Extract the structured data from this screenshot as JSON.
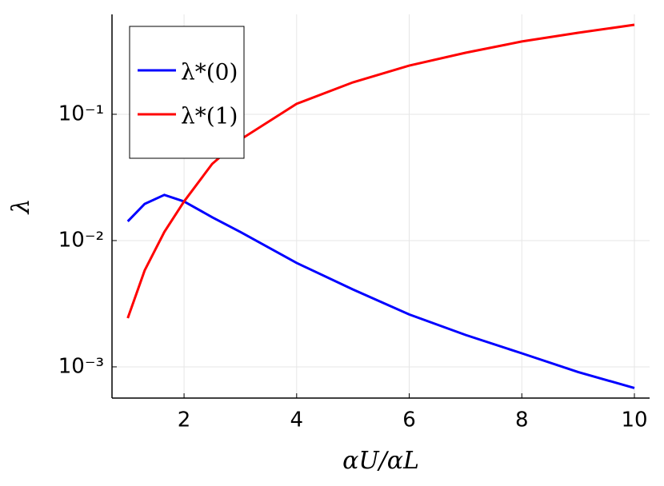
{
  "chart_data": {
    "type": "line",
    "xlabel": "αU/αL",
    "ylabel": "λ",
    "x": [
      1,
      1.3,
      1.65,
      2,
      2.5,
      3,
      4,
      5,
      6,
      7,
      8,
      9,
      10
    ],
    "series": [
      {
        "name": "λ*(0)",
        "color": "#0000ff",
        "values": [
          0.0142,
          0.0195,
          0.023,
          0.0204,
          0.0153,
          0.0117,
          0.00665,
          0.0041,
          0.0026,
          0.00179,
          0.00128,
          0.00091,
          0.00068
        ]
      },
      {
        "name": "λ*(1)",
        "color": "#ff0000",
        "values": [
          0.00243,
          0.0058,
          0.0117,
          0.0204,
          0.0405,
          0.063,
          0.121,
          0.179,
          0.243,
          0.307,
          0.377,
          0.442,
          0.511
        ]
      }
    ],
    "xlim": [
      0.72,
      10.27
    ],
    "xticks": [
      2,
      4,
      6,
      8,
      10
    ],
    "ylim": [
      0.000566,
      0.618
    ],
    "yticks": [
      {
        "value": 0.001,
        "label": "10⁻³"
      },
      {
        "value": 0.01,
        "label": "10⁻²"
      },
      {
        "value": 0.1,
        "label": "10⁻¹"
      }
    ],
    "ylog": true,
    "grid": true,
    "legend": "top-left"
  }
}
